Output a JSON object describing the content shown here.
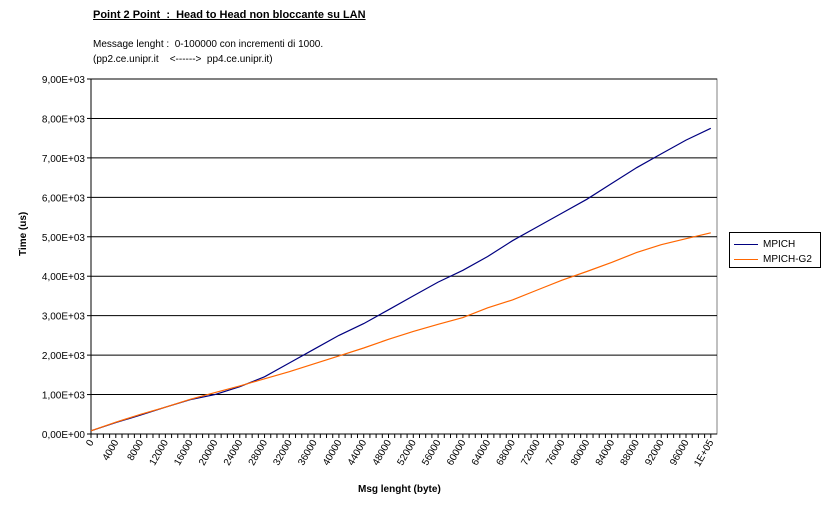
{
  "chart_data": {
    "type": "line",
    "title": "Point 2 Point  :  Head to Head non bloccante su LAN",
    "subtitle_lines": [
      "Message lenght :  0-100000 con incrementi di 1000.",
      "(pp2.ce.unipr.it    <------>  pp4.ce.unipr.it)"
    ],
    "xlabel": "Msg lenght (byte)",
    "ylabel": "Time (us)",
    "ylim": [
      0,
      9000
    ],
    "xlim": [
      0,
      101000
    ],
    "y_ticks": [
      0,
      1000,
      2000,
      3000,
      4000,
      5000,
      6000,
      7000,
      8000,
      9000
    ],
    "y_tick_labels": [
      "0,00E+00",
      "1,00E+03",
      "2,00E+03",
      "3,00E+03",
      "4,00E+03",
      "5,00E+03",
      "6,00E+03",
      "7,00E+03",
      "8,00E+03",
      "9,00E+03"
    ],
    "x_tick_labels": [
      "0",
      "4000",
      "8000",
      "12000",
      "16000",
      "20000",
      "24000",
      "28000",
      "32000",
      "36000",
      "40000",
      "44000",
      "48000",
      "52000",
      "56000",
      "60000",
      "64000",
      "68000",
      "72000",
      "76000",
      "80000",
      "84000",
      "88000",
      "92000",
      "96000",
      "1E+05"
    ],
    "grid": "horizontal",
    "legend_position": "right",
    "x": [
      0,
      4000,
      8000,
      12000,
      16000,
      20000,
      24000,
      28000,
      32000,
      36000,
      40000,
      44000,
      48000,
      52000,
      56000,
      60000,
      64000,
      68000,
      72000,
      76000,
      80000,
      84000,
      88000,
      92000,
      96000,
      100000
    ],
    "series": [
      {
        "name": "MPICH",
        "color": "#000080",
        "values": [
          80,
          290,
          480,
          680,
          870,
          1000,
          1200,
          1450,
          1800,
          2150,
          2500,
          2800,
          3150,
          3500,
          3850,
          4150,
          4500,
          4900,
          5250,
          5600,
          5950,
          6350,
          6750,
          7100,
          7450,
          7750
        ]
      },
      {
        "name": "MPICH-G2",
        "color": "#ff6600",
        "values": [
          80,
          300,
          500,
          680,
          880,
          1050,
          1220,
          1400,
          1580,
          1780,
          1980,
          2180,
          2400,
          2600,
          2780,
          2950,
          3200,
          3400,
          3650,
          3900,
          4120,
          4350,
          4600,
          4800,
          4950,
          5100
        ]
      }
    ]
  }
}
